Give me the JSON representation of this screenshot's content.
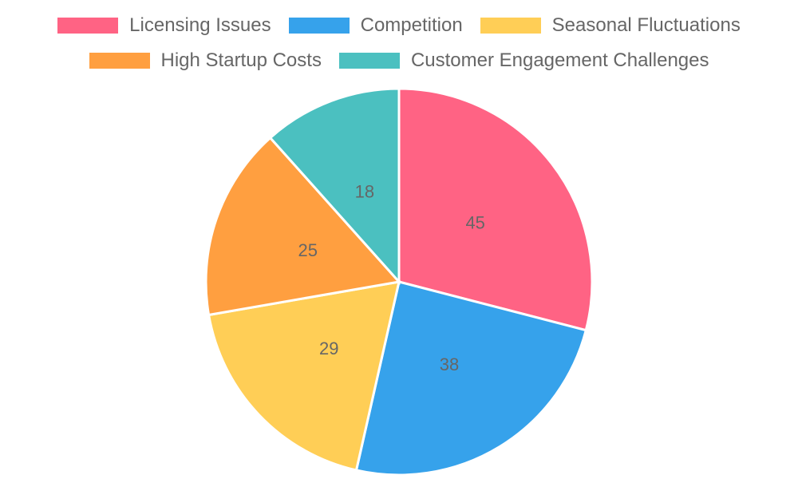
{
  "chart_data": {
    "type": "pie",
    "title": "",
    "categories": [
      "Licensing Issues",
      "Competition",
      "Seasonal Fluctuations",
      "High Startup Costs",
      "Customer Engagement Challenges"
    ],
    "values": [
      45,
      38,
      29,
      25,
      18
    ],
    "colors": [
      "#ff6384",
      "#36a2eb",
      "#ffce56",
      "#ff9f40",
      "#4bc0c0"
    ],
    "legend_position": "top",
    "show_value_labels": true
  },
  "legend": {
    "rows": [
      [
        {
          "label": "Licensing Issues",
          "color": "#ff6384"
        },
        {
          "label": "Competition",
          "color": "#36a2eb"
        },
        {
          "label": "Seasonal Fluctuations",
          "color": "#ffce56"
        }
      ],
      [
        {
          "label": "High Startup Costs",
          "color": "#ff9f40"
        },
        {
          "label": "Customer Engagement Challenges",
          "color": "#4bc0c0"
        }
      ]
    ]
  }
}
